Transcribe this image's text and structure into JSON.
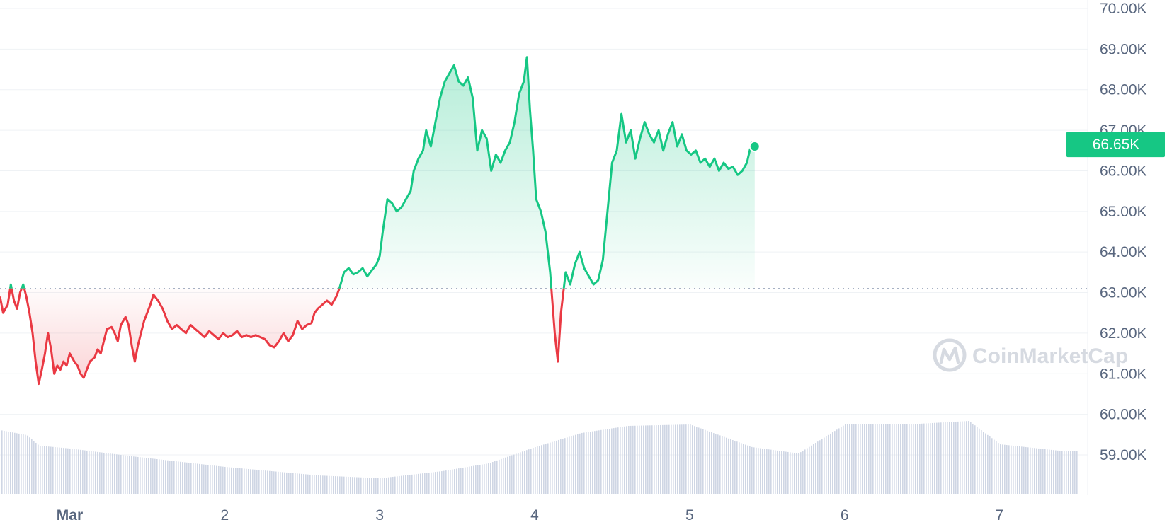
{
  "watermark": {
    "text": "CoinMarketCap"
  },
  "colors": {
    "up": "#16c784",
    "down": "#ea3943",
    "grid": "#eff2f5",
    "axis_text": "#58667e",
    "volume": "#cfd6e4",
    "reference_line": "#a6b0c3"
  },
  "chart_data": {
    "type": "line",
    "title": "",
    "xlabel": "",
    "ylabel": "",
    "ylim": [
      58000,
      70000
    ],
    "yticks": [
      "59.00K",
      "60.00K",
      "61.00K",
      "62.00K",
      "63.00K",
      "64.00K",
      "65.00K",
      "66.00K",
      "67.00K",
      "68.00K",
      "69.00K",
      "70.00K"
    ],
    "xlim": [
      0.55,
      7.45
    ],
    "xticks": [
      {
        "x": 1,
        "label": "Mar",
        "bold": true
      },
      {
        "x": 2,
        "label": "2",
        "bold": false
      },
      {
        "x": 3,
        "label": "3",
        "bold": false
      },
      {
        "x": 4,
        "label": "4",
        "bold": false
      },
      {
        "x": 5,
        "label": "5",
        "bold": false
      },
      {
        "x": 6,
        "label": "6",
        "bold": false
      },
      {
        "x": 7,
        "label": "7",
        "bold": false
      }
    ],
    "reference_value": 63100,
    "current_value": 66650,
    "current_label": "66.65K",
    "grid": true,
    "series": [
      {
        "points": [
          [
            0.55,
            62900
          ],
          [
            0.57,
            62500
          ],
          [
            0.6,
            62700
          ],
          [
            0.62,
            63200
          ],
          [
            0.64,
            62800
          ],
          [
            0.66,
            62600
          ],
          [
            0.68,
            63000
          ],
          [
            0.7,
            63200
          ],
          [
            0.72,
            62900
          ],
          [
            0.74,
            62500
          ],
          [
            0.76,
            62000
          ],
          [
            0.78,
            61300
          ],
          [
            0.8,
            60750
          ],
          [
            0.82,
            61100
          ],
          [
            0.84,
            61500
          ],
          [
            0.86,
            62000
          ],
          [
            0.88,
            61600
          ],
          [
            0.9,
            61000
          ],
          [
            0.92,
            61200
          ],
          [
            0.94,
            61100
          ],
          [
            0.96,
            61300
          ],
          [
            0.98,
            61200
          ],
          [
            1.0,
            61500
          ],
          [
            1.03,
            61300
          ],
          [
            1.05,
            61200
          ],
          [
            1.07,
            61000
          ],
          [
            1.09,
            60900
          ],
          [
            1.11,
            61100
          ],
          [
            1.13,
            61300
          ],
          [
            1.16,
            61400
          ],
          [
            1.18,
            61600
          ],
          [
            1.2,
            61500
          ],
          [
            1.22,
            61800
          ],
          [
            1.24,
            62100
          ],
          [
            1.27,
            62150
          ],
          [
            1.29,
            62000
          ],
          [
            1.31,
            61800
          ],
          [
            1.33,
            62200
          ],
          [
            1.36,
            62400
          ],
          [
            1.38,
            62200
          ],
          [
            1.4,
            61700
          ],
          [
            1.42,
            61300
          ],
          [
            1.44,
            61700
          ],
          [
            1.46,
            62000
          ],
          [
            1.48,
            62300
          ],
          [
            1.5,
            62500
          ],
          [
            1.52,
            62700
          ],
          [
            1.54,
            62950
          ],
          [
            1.57,
            62800
          ],
          [
            1.6,
            62600
          ],
          [
            1.63,
            62300
          ],
          [
            1.66,
            62100
          ],
          [
            1.69,
            62200
          ],
          [
            1.72,
            62100
          ],
          [
            1.75,
            62000
          ],
          [
            1.78,
            62200
          ],
          [
            1.81,
            62100
          ],
          [
            1.84,
            62000
          ],
          [
            1.87,
            61900
          ],
          [
            1.9,
            62050
          ],
          [
            1.93,
            61950
          ],
          [
            1.96,
            61850
          ],
          [
            1.99,
            62000
          ],
          [
            2.02,
            61900
          ],
          [
            2.05,
            61950
          ],
          [
            2.08,
            62050
          ],
          [
            2.11,
            61900
          ],
          [
            2.14,
            61950
          ],
          [
            2.17,
            61900
          ],
          [
            2.2,
            61950
          ],
          [
            2.23,
            61900
          ],
          [
            2.26,
            61850
          ],
          [
            2.29,
            61700
          ],
          [
            2.32,
            61650
          ],
          [
            2.35,
            61800
          ],
          [
            2.38,
            62000
          ],
          [
            2.41,
            61800
          ],
          [
            2.44,
            61950
          ],
          [
            2.47,
            62300
          ],
          [
            2.5,
            62100
          ],
          [
            2.53,
            62200
          ],
          [
            2.56,
            62250
          ],
          [
            2.58,
            62500
          ],
          [
            2.6,
            62600
          ],
          [
            2.63,
            62700
          ],
          [
            2.66,
            62800
          ],
          [
            2.69,
            62700
          ],
          [
            2.72,
            62900
          ],
          [
            2.74,
            63100
          ],
          [
            2.77,
            63500
          ],
          [
            2.8,
            63600
          ],
          [
            2.83,
            63450
          ],
          [
            2.86,
            63500
          ],
          [
            2.89,
            63600
          ],
          [
            2.92,
            63400
          ],
          [
            2.95,
            63550
          ],
          [
            2.98,
            63700
          ],
          [
            3.0,
            63900
          ],
          [
            3.02,
            64500
          ],
          [
            3.05,
            65300
          ],
          [
            3.08,
            65200
          ],
          [
            3.11,
            65000
          ],
          [
            3.14,
            65100
          ],
          [
            3.17,
            65300
          ],
          [
            3.2,
            65500
          ],
          [
            3.22,
            66000
          ],
          [
            3.25,
            66300
          ],
          [
            3.28,
            66500
          ],
          [
            3.3,
            67000
          ],
          [
            3.33,
            66600
          ],
          [
            3.36,
            67200
          ],
          [
            3.39,
            67800
          ],
          [
            3.42,
            68200
          ],
          [
            3.45,
            68400
          ],
          [
            3.48,
            68600
          ],
          [
            3.51,
            68200
          ],
          [
            3.54,
            68100
          ],
          [
            3.57,
            68300
          ],
          [
            3.6,
            67800
          ],
          [
            3.63,
            66500
          ],
          [
            3.66,
            67000
          ],
          [
            3.69,
            66800
          ],
          [
            3.72,
            66000
          ],
          [
            3.75,
            66400
          ],
          [
            3.78,
            66200
          ],
          [
            3.81,
            66500
          ],
          [
            3.84,
            66700
          ],
          [
            3.87,
            67200
          ],
          [
            3.9,
            67900
          ],
          [
            3.93,
            68200
          ],
          [
            3.95,
            68800
          ],
          [
            3.97,
            67500
          ],
          [
            3.99,
            66500
          ],
          [
            4.01,
            65300
          ],
          [
            4.04,
            65000
          ],
          [
            4.07,
            64500
          ],
          [
            4.1,
            63500
          ],
          [
            4.13,
            62000
          ],
          [
            4.15,
            61300
          ],
          [
            4.17,
            62500
          ],
          [
            4.2,
            63500
          ],
          [
            4.23,
            63200
          ],
          [
            4.26,
            63700
          ],
          [
            4.29,
            64000
          ],
          [
            4.32,
            63600
          ],
          [
            4.35,
            63400
          ],
          [
            4.38,
            63200
          ],
          [
            4.41,
            63300
          ],
          [
            4.44,
            63800
          ],
          [
            4.47,
            65000
          ],
          [
            4.5,
            66200
          ],
          [
            4.53,
            66500
          ],
          [
            4.56,
            67400
          ],
          [
            4.59,
            66700
          ],
          [
            4.62,
            67000
          ],
          [
            4.65,
            66300
          ],
          [
            4.68,
            66800
          ],
          [
            4.71,
            67200
          ],
          [
            4.74,
            66900
          ],
          [
            4.77,
            66700
          ],
          [
            4.8,
            67000
          ],
          [
            4.83,
            66500
          ],
          [
            4.86,
            66900
          ],
          [
            4.89,
            67200
          ],
          [
            4.92,
            66600
          ],
          [
            4.95,
            66900
          ],
          [
            4.98,
            66500
          ],
          [
            5.01,
            66400
          ],
          [
            5.04,
            66500
          ],
          [
            5.07,
            66200
          ],
          [
            5.1,
            66300
          ],
          [
            5.13,
            66100
          ],
          [
            5.16,
            66300
          ],
          [
            5.19,
            66000
          ],
          [
            5.22,
            66200
          ],
          [
            5.25,
            66050
          ],
          [
            5.28,
            66100
          ],
          [
            5.31,
            65900
          ],
          [
            5.34,
            66000
          ],
          [
            5.37,
            66200
          ],
          [
            5.4,
            66700
          ],
          [
            5.42,
            66600
          ]
        ]
      }
    ]
  }
}
